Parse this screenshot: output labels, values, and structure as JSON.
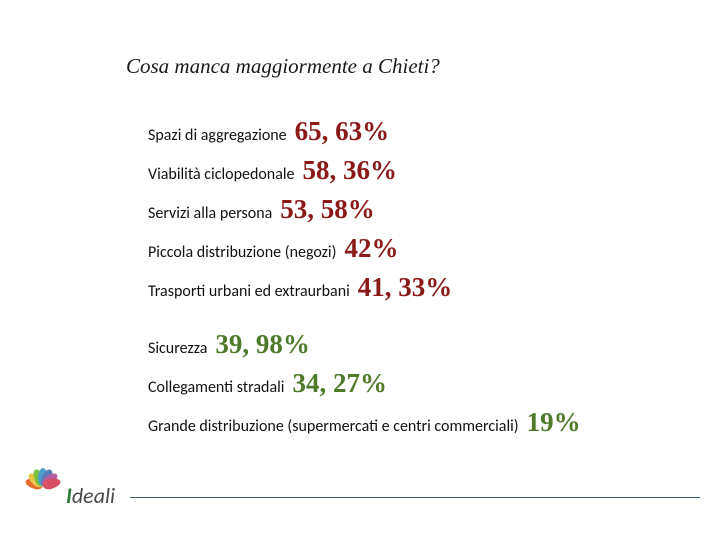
{
  "title": "Cosa manca maggiormente a Chieti?",
  "items": [
    {
      "label": "Spazi di aggregazione",
      "value": "65, 63%",
      "color": "#8a1a17"
    },
    {
      "label": "Viabilità ciclopedonale",
      "value": "58, 36%",
      "color": "#8a1a17"
    },
    {
      "label": "Servizi alla persona",
      "value": "53, 58%",
      "color": "#8a1a17"
    },
    {
      "label": "Piccola distribuzione (negozi)",
      "value": "42%",
      "color": "#8a1a17"
    },
    {
      "label": "Trasporti urbani ed extraurbani",
      "value": "41, 33%",
      "color": "#8a1a17"
    }
  ],
  "items2": [
    {
      "label": "Sicurezza",
      "value": "39, 98%",
      "color": "#4e7a2a"
    },
    {
      "label": "Collegamenti stradali",
      "value": "34, 27%",
      "color": "#4e7a2a"
    },
    {
      "label": "Grande distribuzione (supermercati  e centri commerciali)",
      "value": "19%",
      "color": "#4e7a2a"
    }
  ],
  "logo": {
    "text_cap": "I",
    "text_rest": "deali",
    "petal_colors": [
      "#e46a2e",
      "#e9c84b",
      "#7bbf3f",
      "#4aa0c9",
      "#5b7bb8",
      "#b45fa0",
      "#d94f63"
    ]
  },
  "style": {
    "title_fontsize": 21,
    "label_fontsize": 16,
    "value_fontsize": 27,
    "background": "#ffffff",
    "rule_color": "#3b5b7c"
  }
}
